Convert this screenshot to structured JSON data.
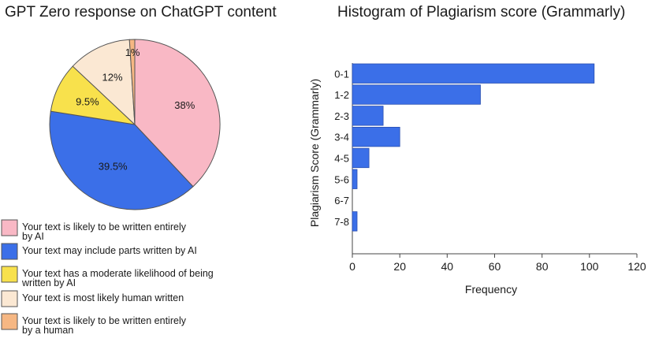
{
  "chart_data": [
    {
      "type": "pie",
      "title": "GPT Zero response on ChatGPT content",
      "slices": [
        {
          "label": "Your text is likely to be written entirely by AI",
          "value": 38,
          "value_label": "38%",
          "color": "#f9b8c5"
        },
        {
          "label": "Your text may include parts written by AI",
          "value": 39.5,
          "value_label": "39.5%",
          "color": "#3b6fe8"
        },
        {
          "label": "Your text has a moderate likelihood of being written by AI",
          "value": 9.5,
          "value_label": "9.5%",
          "color": "#f8e14c"
        },
        {
          "label": "Your text is most likely human written",
          "value": 12,
          "value_label": "12%",
          "color": "#fbe8d3"
        },
        {
          "label": "Your text is likely to be written entirely by a human",
          "value": 1,
          "value_label": "1%",
          "color": "#f6b783"
        }
      ],
      "legend_placement": "bottom-left"
    },
    {
      "type": "bar",
      "orientation": "horizontal",
      "title": "Histogram of Plagiarism score (Grammarly)",
      "xlabel": "Frequency",
      "ylabel": "Plagiarism Score (Grammarly)",
      "categories": [
        "0-1",
        "1-2",
        "2-3",
        "3-4",
        "4-5",
        "5-6",
        "6-7",
        "7-8"
      ],
      "values": [
        102,
        54,
        13,
        20,
        7,
        2,
        0,
        2
      ],
      "xlim": [
        0,
        120
      ],
      "xticks": [
        0,
        20,
        40,
        60,
        80,
        100,
        120
      ],
      "bar_color": "#3b6fe8",
      "grid": false
    }
  ]
}
